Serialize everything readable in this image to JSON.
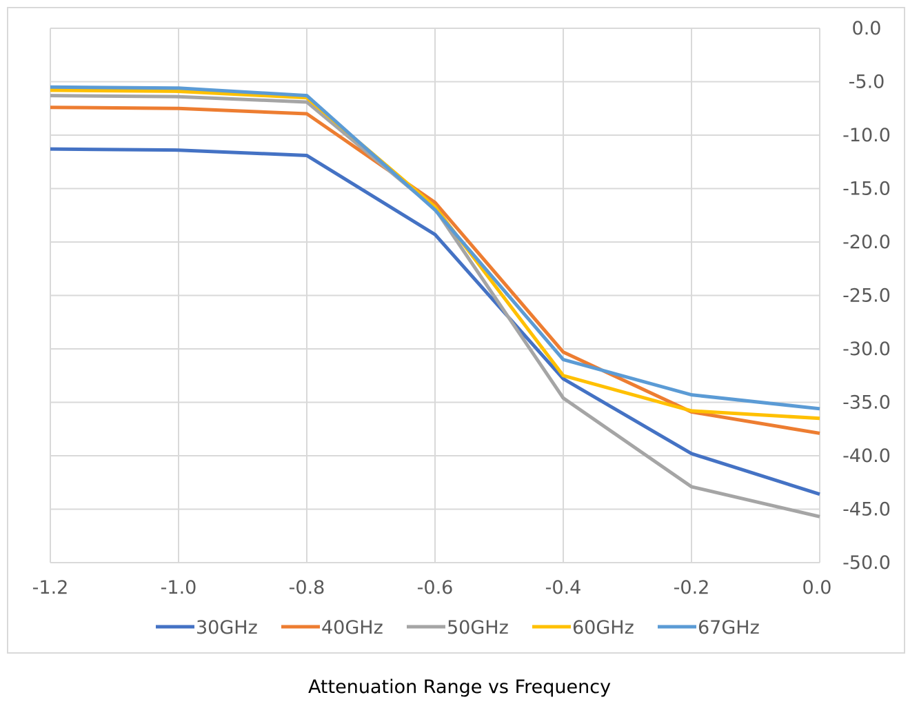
{
  "caption": "Attenuation Range vs Frequency",
  "chart_data": {
    "type": "line",
    "title": "",
    "xlabel": "",
    "ylabel": "",
    "x": [
      -1.2,
      -1.0,
      -0.8,
      -0.6,
      -0.4,
      -0.2,
      0.0
    ],
    "xlim": [
      -1.2,
      0.0
    ],
    "ylim": [
      -50.0,
      0.0
    ],
    "x_ticks": [
      -1.2,
      -1.0,
      -0.8,
      -0.6,
      -0.4,
      -0.2,
      0.0
    ],
    "x_tick_labels": [
      "-1.2",
      "-1.0",
      "-0.8",
      "-0.6",
      "-0.4",
      "-0.2",
      "0.0"
    ],
    "y_ticks": [
      0,
      -5,
      -10,
      -15,
      -20,
      -25,
      -30,
      -35,
      -40,
      -45,
      -50
    ],
    "y_tick_labels": [
      "0.0",
      "-5.0",
      "-10.0",
      "-15.0",
      "-20.0",
      "-25.0",
      "-30.0",
      "-35.0",
      "-40.0",
      "-45.0",
      "-50.0"
    ],
    "y_axis_side": "right",
    "grid": true,
    "legend_position": "bottom",
    "series": [
      {
        "name": "30GHz",
        "color": "#4472C4",
        "values": [
          -11.3,
          -11.4,
          -11.9,
          -19.3,
          -32.8,
          -39.8,
          -43.6
        ]
      },
      {
        "name": "40GHz",
        "color": "#ED7D31",
        "values": [
          -7.4,
          -7.5,
          -8.0,
          -16.3,
          -30.3,
          -35.9,
          -37.9
        ]
      },
      {
        "name": "50GHz",
        "color": "#A5A5A5",
        "values": [
          -6.3,
          -6.4,
          -6.9,
          -16.9,
          -34.6,
          -42.9,
          -45.7
        ]
      },
      {
        "name": "60GHz",
        "color": "#FFC000",
        "values": [
          -5.8,
          -5.9,
          -6.5,
          -16.7,
          -32.5,
          -35.8,
          -36.5
        ]
      },
      {
        "name": "67GHz",
        "color": "#5B9BD5",
        "values": [
          -5.5,
          -5.6,
          -6.3,
          -17.0,
          -31.0,
          -34.3,
          -35.6
        ]
      }
    ]
  }
}
